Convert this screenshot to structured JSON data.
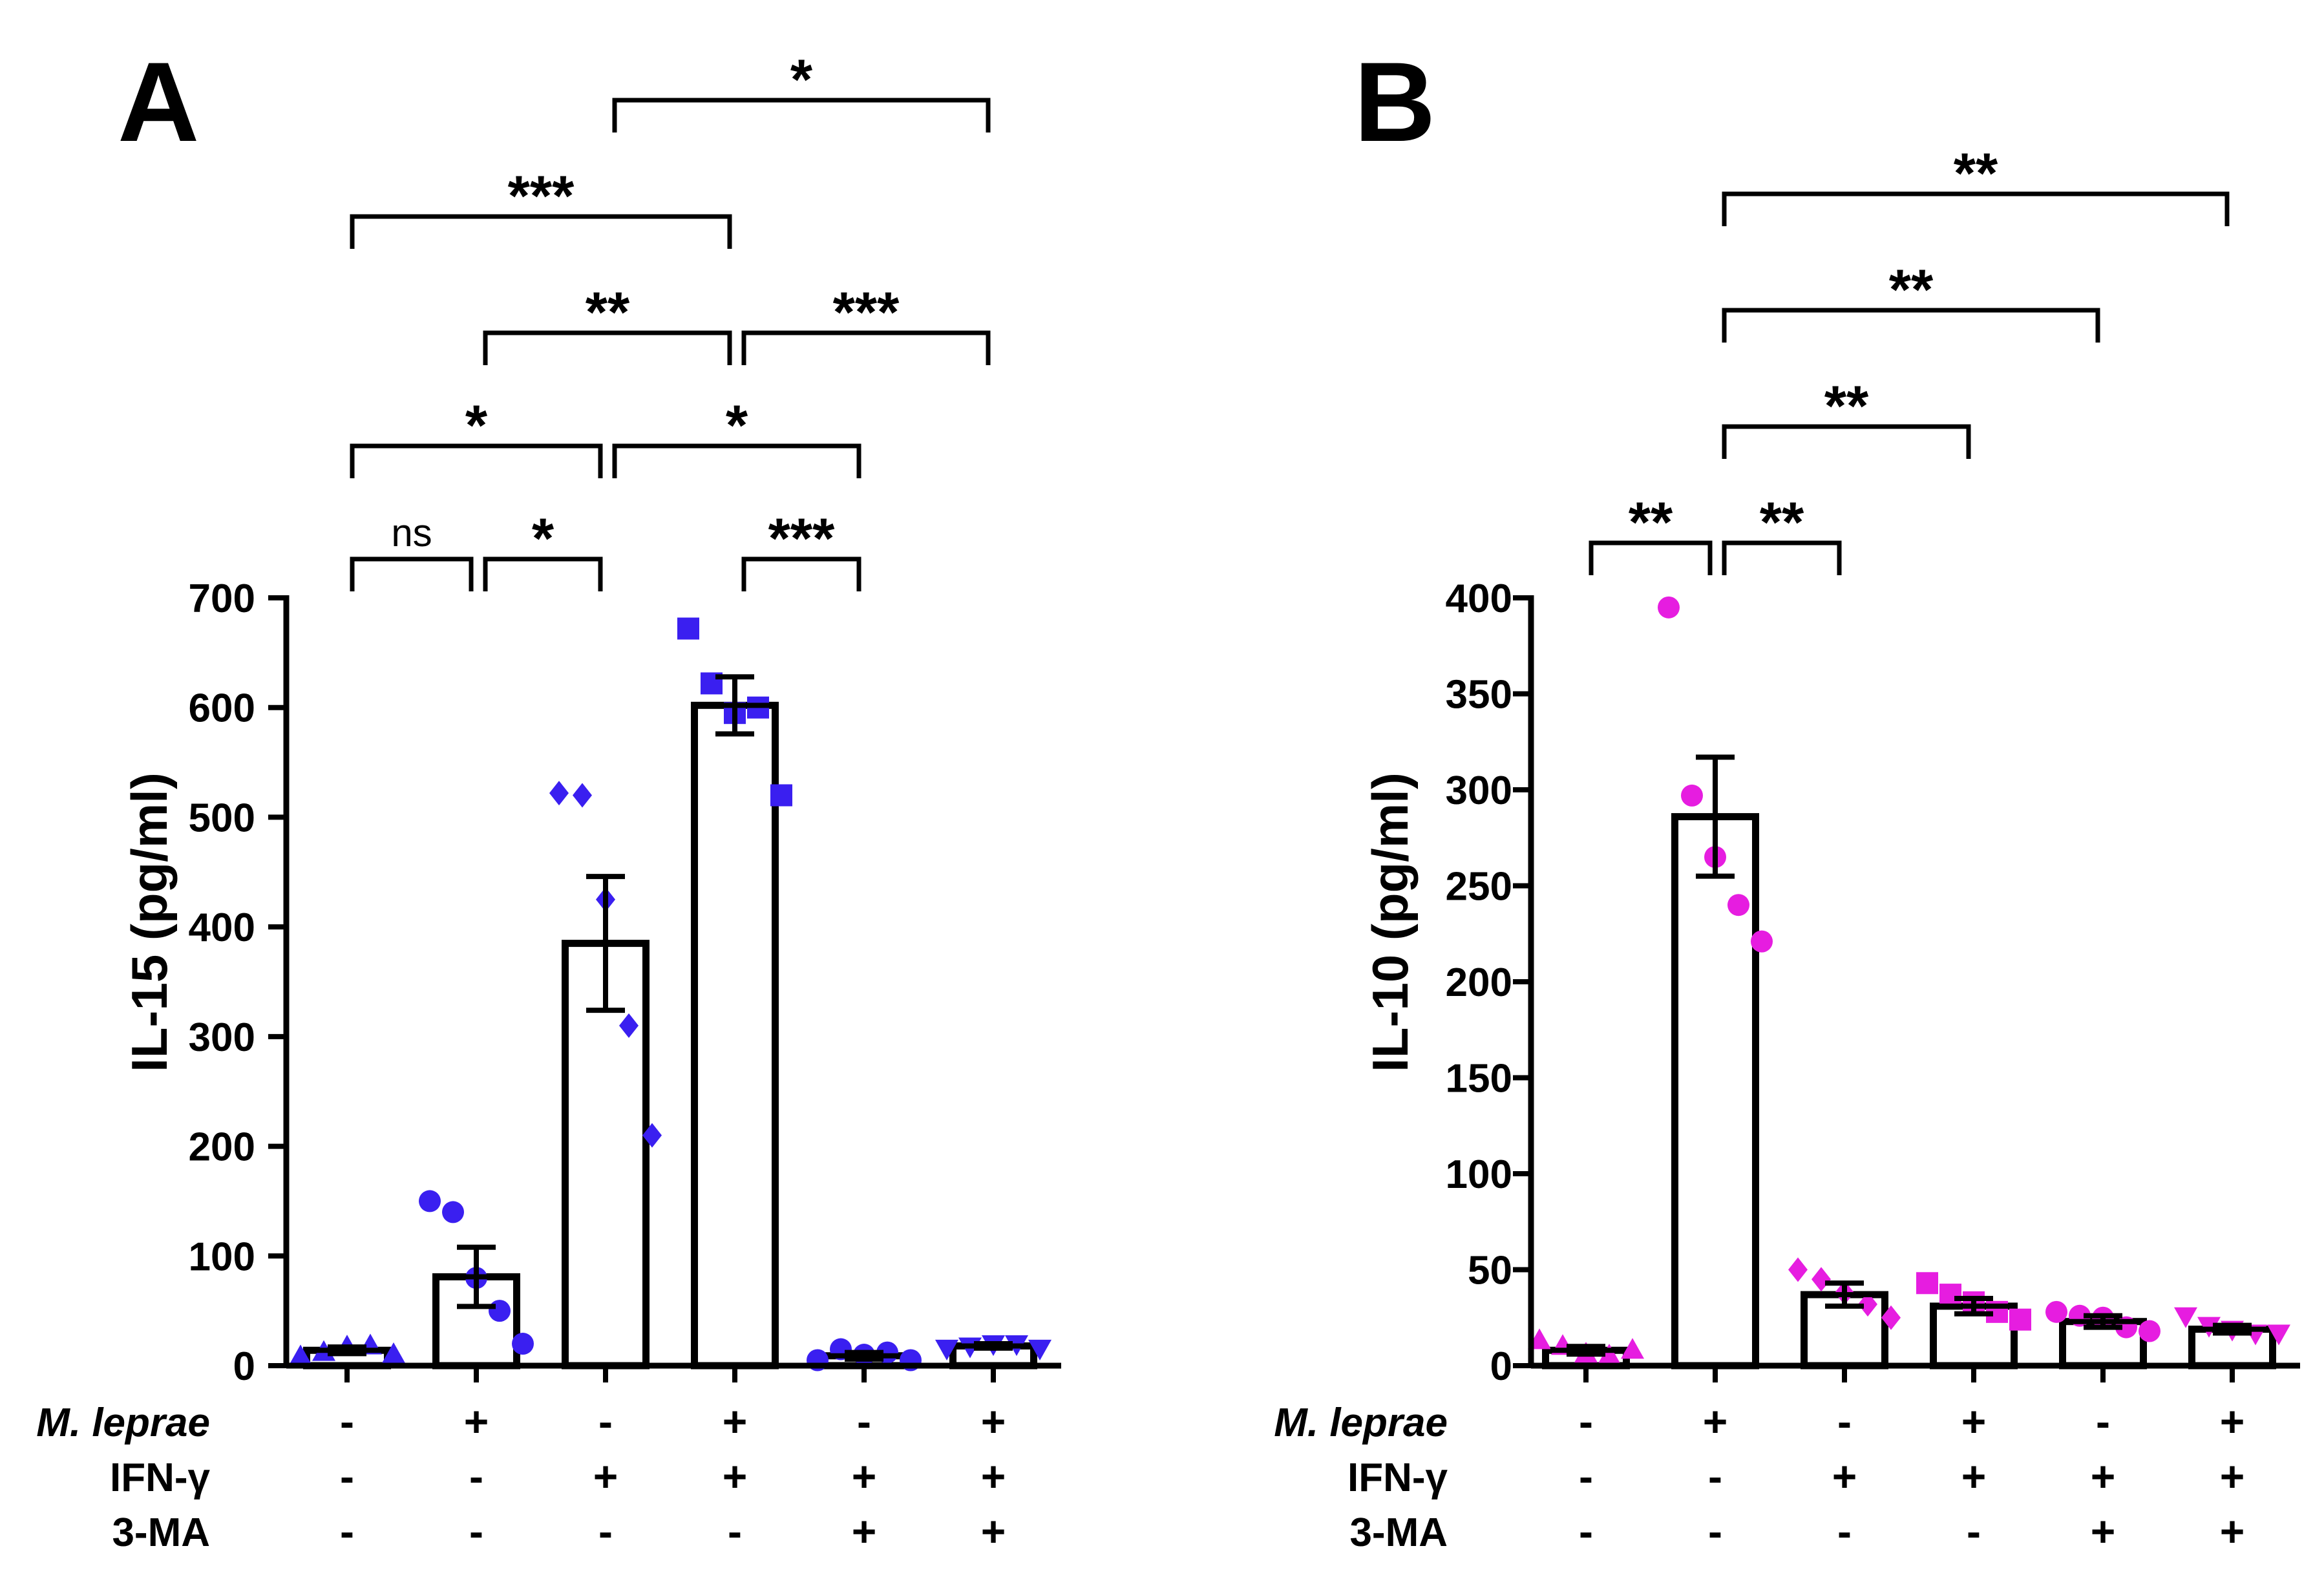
{
  "colors": {
    "axis": "#000000",
    "panel_a_points": "#3a1ff0",
    "panel_b_points": "#e61de0",
    "bar_fill": "#ffffff"
  },
  "row_labels": [
    "M. leprae",
    "IFN-γ",
    "3-MA"
  ],
  "conditions": {
    "m_leprae": [
      "-",
      "+",
      "-",
      "+",
      "-",
      "+"
    ],
    "ifn_gamma": [
      "-",
      "-",
      "+",
      "+",
      "+",
      "+"
    ],
    "three_ma": [
      "-",
      "-",
      "-",
      "-",
      "+",
      "+"
    ]
  },
  "chart_data": [
    {
      "panel": "A",
      "type": "bar",
      "title": "",
      "ylabel": "IL-15 (pg/ml)",
      "xlabel": "",
      "ylim": [
        0,
        700
      ],
      "yticks": [
        0,
        100,
        200,
        300,
        400,
        500,
        600,
        700
      ],
      "point_color": "#3a1ff0",
      "series": [
        {
          "name": "mean",
          "values": [
            14,
            81,
            385,
            602,
            9,
            18
          ]
        },
        {
          "name": "sem",
          "values": [
            3,
            27,
            61,
            26,
            3,
            2
          ]
        }
      ],
      "points": [
        {
          "marker": "triangle",
          "values": [
            8,
            12,
            17,
            18,
            10
          ]
        },
        {
          "marker": "circle",
          "values": [
            150,
            140,
            80,
            50,
            20
          ]
        },
        {
          "marker": "diamond",
          "values": [
            522,
            520,
            425,
            310,
            210
          ]
        },
        {
          "marker": "square",
          "values": [
            672,
            622,
            595,
            600,
            520
          ]
        },
        {
          "marker": "circle",
          "values": [
            5,
            15,
            10,
            12,
            5
          ]
        },
        {
          "marker": "triangle-down",
          "values": [
            16,
            18,
            20,
            20,
            16
          ]
        }
      ],
      "brackets": [
        {
          "from": 1,
          "to": 2,
          "label": "ns",
          "level": 0
        },
        {
          "from": 2,
          "to": 3,
          "label": "*",
          "level": 0
        },
        {
          "from": 4,
          "to": 5,
          "label": "***",
          "level": 0
        },
        {
          "from": 1,
          "to": 3,
          "label": "*",
          "level": 1
        },
        {
          "from": 3,
          "to": 5,
          "label": "*",
          "level": 1
        },
        {
          "from": 2,
          "to": 4,
          "label": "**",
          "level": 2
        },
        {
          "from": 4,
          "to": 6,
          "label": "***",
          "level": 2
        },
        {
          "from": 1,
          "to": 4,
          "label": "***",
          "level": 3
        },
        {
          "from": 3,
          "to": 6,
          "label": "*",
          "level": 4
        }
      ]
    },
    {
      "panel": "B",
      "type": "bar",
      "title": "",
      "ylabel": "IL-10 (pg/ml)",
      "xlabel": "",
      "ylim": [
        0,
        400
      ],
      "yticks": [
        0,
        50,
        100,
        150,
        200,
        250,
        300,
        350,
        400
      ],
      "point_color": "#e61de0",
      "series": [
        {
          "name": "mean",
          "values": [
            8,
            286,
            37,
            31,
            23,
            19
          ]
        },
        {
          "name": "sem",
          "values": [
            2,
            31,
            6,
            4,
            3,
            2
          ]
        }
      ],
      "points": [
        {
          "marker": "triangle",
          "values": [
            13,
            10,
            6,
            5,
            8
          ]
        },
        {
          "marker": "circle",
          "values": [
            395,
            297,
            265,
            240,
            221
          ]
        },
        {
          "marker": "diamond",
          "values": [
            50,
            45,
            38,
            32,
            25
          ]
        },
        {
          "marker": "square",
          "values": [
            43,
            37,
            33,
            28,
            24
          ]
        },
        {
          "marker": "circle",
          "values": [
            28,
            26,
            25,
            20,
            18
          ]
        },
        {
          "marker": "triangle-down",
          "values": [
            26,
            21,
            19,
            17,
            17
          ]
        }
      ],
      "brackets": [
        {
          "from": 1,
          "to": 2,
          "label": "**",
          "level": 0
        },
        {
          "from": 2,
          "to": 3,
          "label": "**",
          "level": 0
        },
        {
          "from": 2,
          "to": 4,
          "label": "**",
          "level": 1
        },
        {
          "from": 2,
          "to": 5,
          "label": "**",
          "level": 2
        },
        {
          "from": 2,
          "to": 6,
          "label": "**",
          "level": 3
        }
      ]
    }
  ]
}
